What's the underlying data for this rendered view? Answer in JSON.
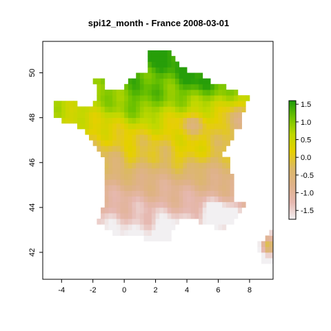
{
  "title": "spi12_month - France 2008-03-01",
  "map": {
    "x_range": [
      -5.2,
      9.5
    ],
    "y_range": [
      40.8,
      51.4
    ],
    "x_ticks": [
      -4,
      -2,
      0,
      2,
      4,
      6,
      8
    ],
    "y_ticks": [
      42,
      44,
      46,
      48,
      50
    ],
    "cell_size_deg": 0.25
  },
  "legend": {
    "ticks": [
      1.5,
      1.0,
      0.5,
      0.0,
      -0.5,
      -1.0,
      -1.5
    ],
    "range": [
      -1.75,
      1.6
    ],
    "colors": [
      "#f2f0f2",
      "#e6b8b0",
      "#dfb289",
      "#dcb867",
      "#e6d000",
      "#bfd800",
      "#70c300",
      "#1e9a0a"
    ]
  }
}
